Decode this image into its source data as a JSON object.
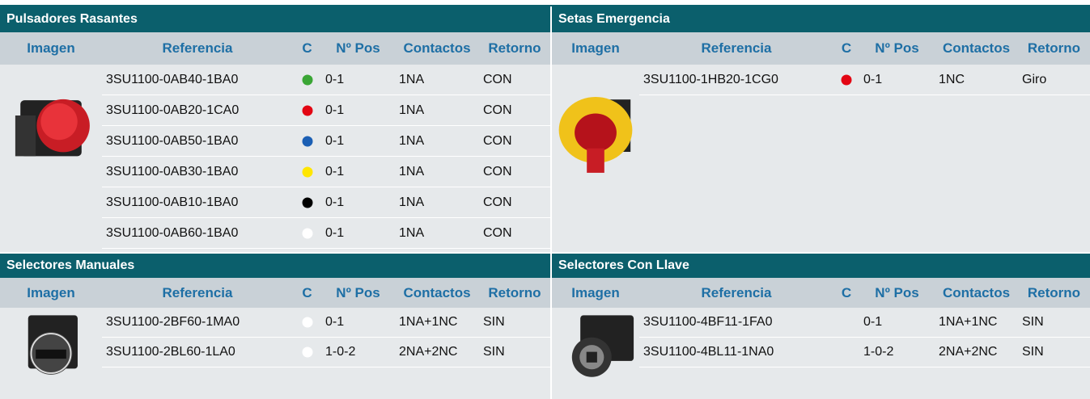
{
  "panels": [
    {
      "title": "Pulsadores Rasantes",
      "headers": [
        "Imagen",
        "Referencia",
        "C",
        "Nº Pos",
        "Contactos",
        "Retorno"
      ],
      "rows": [
        {
          "ref": "3SU1100-0AB40-1BA0",
          "dot": "#3aa635",
          "pos": "0-1",
          "contacts": "1NA",
          "ret": "CON"
        },
        {
          "ref": "3SU1100-0AB20-1CA0",
          "dot": "#e30613",
          "pos": "0-1",
          "contacts": "1NA",
          "ret": "CON"
        },
        {
          "ref": "3SU1100-0AB50-1BA0",
          "dot": "#1b5fb4",
          "pos": "0-1",
          "contacts": "1NA",
          "ret": "CON"
        },
        {
          "ref": "3SU1100-0AB30-1BA0",
          "dot": "#ffe600",
          "pos": "0-1",
          "contacts": "1NA",
          "ret": "CON"
        },
        {
          "ref": "3SU1100-0AB10-1BA0",
          "dot": "#000000",
          "pos": "0-1",
          "contacts": "1NA",
          "ret": "CON"
        },
        {
          "ref": "3SU1100-0AB60-1BA0",
          "dot": "#ffffff",
          "pos": "0-1",
          "contacts": "1NA",
          "ret": "CON"
        }
      ]
    },
    {
      "title": "Setas Emergencia",
      "headers": [
        "Imagen",
        "Referencia",
        "C",
        "Nº Pos",
        "Contactos",
        "Retorno"
      ],
      "rows": [
        {
          "ref": "3SU1100-1HB20-1CG0",
          "dot": "#e30613",
          "pos": "0-1",
          "contacts": "1NC",
          "ret": "Giro"
        }
      ]
    },
    {
      "title": "Selectores Manuales",
      "headers": [
        "Imagen",
        "Referencia",
        "C",
        "Nº Pos",
        "Contactos",
        "Retorno"
      ],
      "rows": [
        {
          "ref": "3SU1100-2BF60-1MA0",
          "dot": "#ffffff",
          "pos": "0-1",
          "contacts": "1NA+1NC",
          "ret": "SIN"
        },
        {
          "ref": "3SU1100-2BL60-1LA0",
          "dot": "#ffffff",
          "pos": "1-0-2",
          "contacts": "2NA+2NC",
          "ret": "SIN"
        }
      ]
    },
    {
      "title": "Selectores Con Llave",
      "headers": [
        "Imagen",
        "Referencia",
        "C",
        "Nº Pos",
        "Contactos",
        "Retorno"
      ],
      "rows": [
        {
          "ref": "3SU1100-4BF11-1FA0",
          "dot": null,
          "pos": "0-1",
          "contacts": "1NA+1NC",
          "ret": "SIN"
        },
        {
          "ref": "3SU1100-4BL11-1NA0",
          "dot": null,
          "pos": "1-0-2",
          "contacts": "2NA+2NC",
          "ret": "SIN"
        }
      ]
    }
  ]
}
